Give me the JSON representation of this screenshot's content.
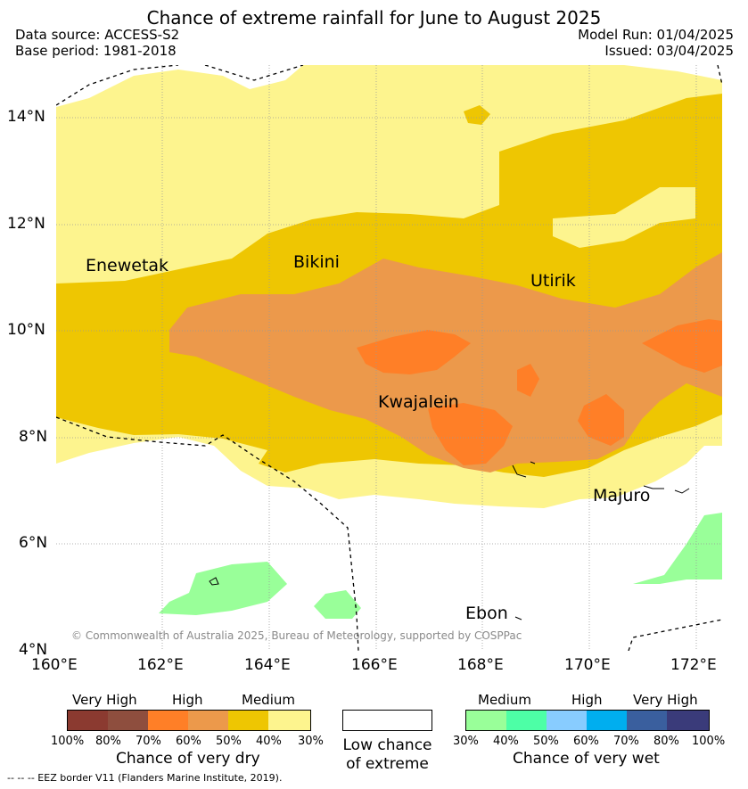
{
  "header": {
    "title": "Chance of extreme rainfall for June to August 2025",
    "data_source": "Data source: ACCESS-S2",
    "base_period": "Base period: 1981-2018",
    "model_run": "Model Run: 01/04/2025",
    "issued": "Issued: 03/04/2025"
  },
  "map": {
    "lat_labels": [
      "14°N",
      "12°N",
      "10°N",
      "8°N",
      "6°N",
      "4°N"
    ],
    "lon_labels": [
      "160°E",
      "162°E",
      "164°E",
      "166°E",
      "168°E",
      "170°E",
      "172°E"
    ],
    "places": {
      "enewetak": "Enewetak",
      "bikini": "Bikini",
      "utirik": "Utirik",
      "kwajalein": "Kwajalein",
      "majuro": "Majuro",
      "ebon": "Ebon"
    },
    "copyright": "© Commonwealth of Australia 2025, Bureau of Meteorology, supported by COSPPac"
  },
  "legend": {
    "dry": {
      "heads": [
        "Very High",
        "High",
        "Medium"
      ],
      "ticks": [
        "100%",
        "80%",
        "70%",
        "60%",
        "50%",
        "40%",
        "30%"
      ],
      "title": "Chance of very dry",
      "colors": [
        "#8b3a30",
        "#8e4e3e",
        "#ff7f27",
        "#ec994b",
        "#eec602",
        "#fdf48e"
      ]
    },
    "low": {
      "line1": "Low chance",
      "line2": "of extreme"
    },
    "wet": {
      "heads": [
        "Medium",
        "High",
        "Very High"
      ],
      "ticks": [
        "30%",
        "40%",
        "50%",
        "60%",
        "70%",
        "80%",
        "100%"
      ],
      "title": "Chance of very wet",
      "colors": [
        "#99ff99",
        "#4dffa6",
        "#88ccff",
        "#00aeef",
        "#3a5f9e",
        "#3a3b7a"
      ]
    },
    "eez_note": "-- -- -- EEZ border V11 (Flanders Marine Institute, 2019)."
  }
}
